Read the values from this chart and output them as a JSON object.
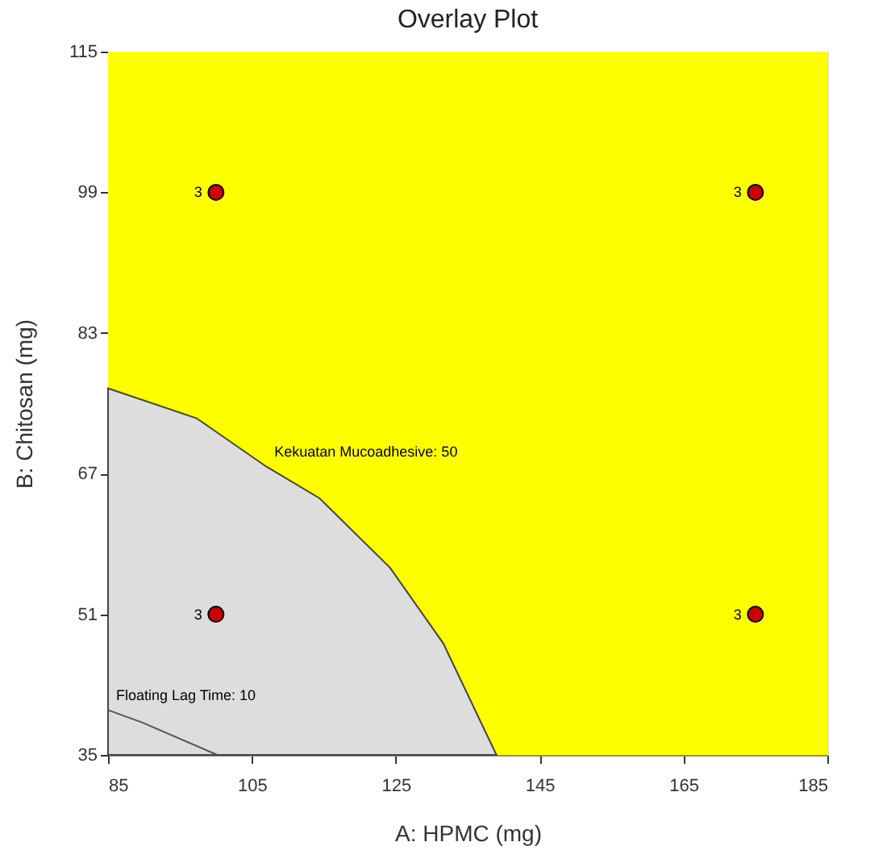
{
  "chart_data": {
    "type": "scatter",
    "title": "Overlay Plot",
    "xlabel": "A: HPMC (mg)",
    "ylabel": "B: Chitosan (mg)",
    "xlim": [
      85,
      185
    ],
    "xticks": [
      85,
      105,
      125,
      145,
      165,
      185
    ],
    "ylim": [
      35,
      115
    ],
    "yticks": [
      35,
      51,
      67,
      83,
      99,
      115
    ],
    "bands": [
      {
        "axis": "x",
        "from": 85,
        "to": 185,
        "color": "#ffff00"
      }
    ],
    "series": [
      {
        "type": "area",
        "color": "#dddddd",
        "x": [
          85,
          97.3,
          107,
          114.4,
          124.2,
          131.6,
          139
        ],
        "values": [
          76.7,
          73.3,
          67.8,
          64.2,
          56.3,
          47.7,
          35
        ]
      },
      {
        "type": "line",
        "color": "#555555",
        "line_style": "solid",
        "x": [
          85,
          89.7,
          100.2
        ],
        "values": [
          40.1,
          38.7,
          35
        ]
      },
      {
        "color": "#cc0000",
        "marker": "circle",
        "x": [
          100,
          175,
          100,
          175
        ],
        "values": [
          99,
          99,
          51,
          51
        ]
      }
    ],
    "annotations": [
      {
        "text": "Kekuatan Mucoadhesive: 50",
        "x": 107,
        "y": 67.8
      },
      {
        "text": "Floating Lag Time: 10",
        "x": 85,
        "y": 40.1
      },
      {
        "text": "3",
        "x": 100,
        "y": 99
      },
      {
        "text": "3",
        "x": 175,
        "y": 99
      },
      {
        "text": "3",
        "x": 100,
        "y": 51
      },
      {
        "text": "3",
        "x": 175,
        "y": 51
      }
    ]
  }
}
